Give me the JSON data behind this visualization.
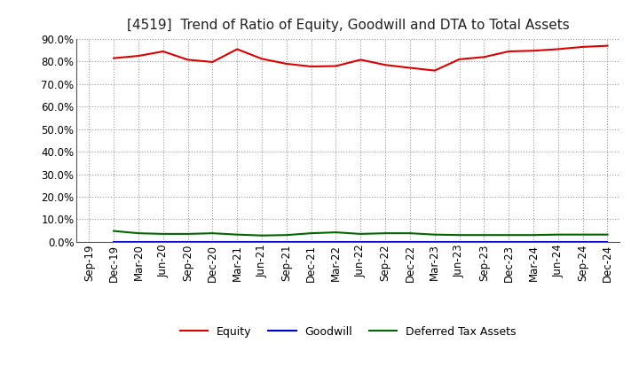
{
  "title": "[4519]  Trend of Ratio of Equity, Goodwill and DTA to Total Assets",
  "x_labels": [
    "Sep-19",
    "Dec-19",
    "Mar-20",
    "Jun-20",
    "Sep-20",
    "Dec-20",
    "Mar-21",
    "Jun-21",
    "Sep-21",
    "Dec-21",
    "Mar-22",
    "Jun-22",
    "Sep-22",
    "Dec-22",
    "Mar-23",
    "Jun-23",
    "Sep-23",
    "Dec-23",
    "Mar-24",
    "Jun-24",
    "Sep-24",
    "Dec-24"
  ],
  "equity": [
    null,
    81.5,
    82.5,
    84.5,
    80.8,
    79.8,
    85.5,
    81.2,
    79.0,
    77.8,
    78.0,
    80.8,
    78.5,
    77.2,
    76.0,
    81.0,
    82.0,
    84.5,
    84.8,
    85.5,
    86.5,
    87.0
  ],
  "goodwill": [
    null,
    0.0,
    0.0,
    0.0,
    0.0,
    0.0,
    0.0,
    0.0,
    0.0,
    0.0,
    0.0,
    0.0,
    0.0,
    0.0,
    0.0,
    0.0,
    0.0,
    0.0,
    0.0,
    0.0,
    0.0,
    0.0
  ],
  "dta": [
    null,
    4.8,
    3.8,
    3.5,
    3.5,
    3.8,
    3.2,
    2.8,
    3.0,
    3.8,
    4.2,
    3.5,
    3.8,
    3.8,
    3.2,
    3.0,
    3.0,
    3.0,
    3.0,
    3.2,
    3.2,
    3.2
  ],
  "equity_color": "#dd0000",
  "goodwill_color": "#0000cc",
  "dta_color": "#006600",
  "ylim": [
    0,
    90
  ],
  "yticks": [
    0,
    10,
    20,
    30,
    40,
    50,
    60,
    70,
    80,
    90
  ],
  "background_color": "#ffffff",
  "grid_color": "#999999",
  "title_fontsize": 11,
  "tick_fontsize": 8.5
}
